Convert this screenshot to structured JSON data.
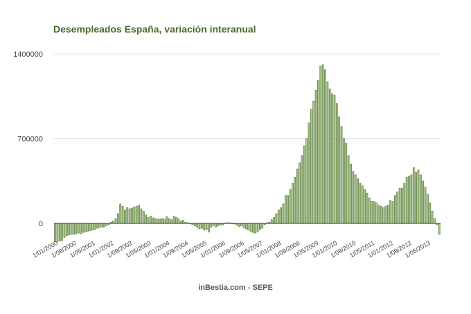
{
  "chart_data": {
    "type": "bar",
    "title": "Desempleados España, variación interanual",
    "source": "inBestia.com - SEPE",
    "xlabel": "",
    "ylabel": "",
    "ylim": [
      -200000,
      1400000
    ],
    "yticks": [
      "1400000",
      "700000",
      "0"
    ],
    "ytick_values": [
      1400000,
      700000,
      0
    ],
    "grid": true,
    "start": "01/2000",
    "xtick_labels": [
      "1/01/2000",
      "1/09/2000",
      "1/05/2001",
      "1/01/2002",
      "1/09/2002",
      "1/05/2003",
      "1/01/2004",
      "1/09/2004",
      "1/05/2005",
      "1/01/2006",
      "1/09/2006",
      "1/05/2007",
      "1/01/2008",
      "1/09/2008",
      "1/05/2009",
      "1/01/2010",
      "1/09/2010",
      "1/05/2011",
      "1/01/2012",
      "1/09/2012",
      "1/05/2013"
    ],
    "xtick_every_months": 8,
    "bar_color": "#5b7f3a",
    "values_thousands": [
      -150,
      -150,
      -145,
      -140,
      -115,
      -100,
      -95,
      -90,
      -90,
      -85,
      -80,
      -85,
      -75,
      -70,
      -65,
      -60,
      -55,
      -50,
      -40,
      -35,
      -30,
      -30,
      -20,
      -10,
      10,
      20,
      40,
      80,
      160,
      140,
      110,
      130,
      120,
      125,
      135,
      140,
      150,
      120,
      100,
      70,
      50,
      60,
      45,
      40,
      35,
      35,
      40,
      35,
      55,
      40,
      30,
      60,
      50,
      40,
      20,
      25,
      10,
      5,
      0,
      -10,
      -20,
      -30,
      -45,
      -40,
      -55,
      -50,
      -70,
      -30,
      -20,
      -30,
      -20,
      -15,
      -10,
      0,
      5,
      5,
      0,
      -5,
      -15,
      -25,
      -20,
      -35,
      -45,
      -55,
      -65,
      -75,
      -80,
      -70,
      -50,
      -40,
      -10,
      5,
      10,
      30,
      50,
      80,
      110,
      130,
      160,
      230,
      230,
      280,
      330,
      380,
      450,
      500,
      560,
      640,
      700,
      830,
      940,
      1010,
      1100,
      1180,
      1300,
      1310,
      1270,
      1170,
      1110,
      1070,
      1060,
      990,
      880,
      800,
      700,
      660,
      560,
      490,
      430,
      400,
      370,
      330,
      310,
      280,
      250,
      210,
      180,
      180,
      170,
      150,
      140,
      130,
      140,
      150,
      190,
      180,
      230,
      260,
      290,
      290,
      330,
      380,
      390,
      400,
      460,
      420,
      440,
      400,
      350,
      300,
      240,
      170,
      100,
      40,
      -10,
      -90
    ]
  }
}
